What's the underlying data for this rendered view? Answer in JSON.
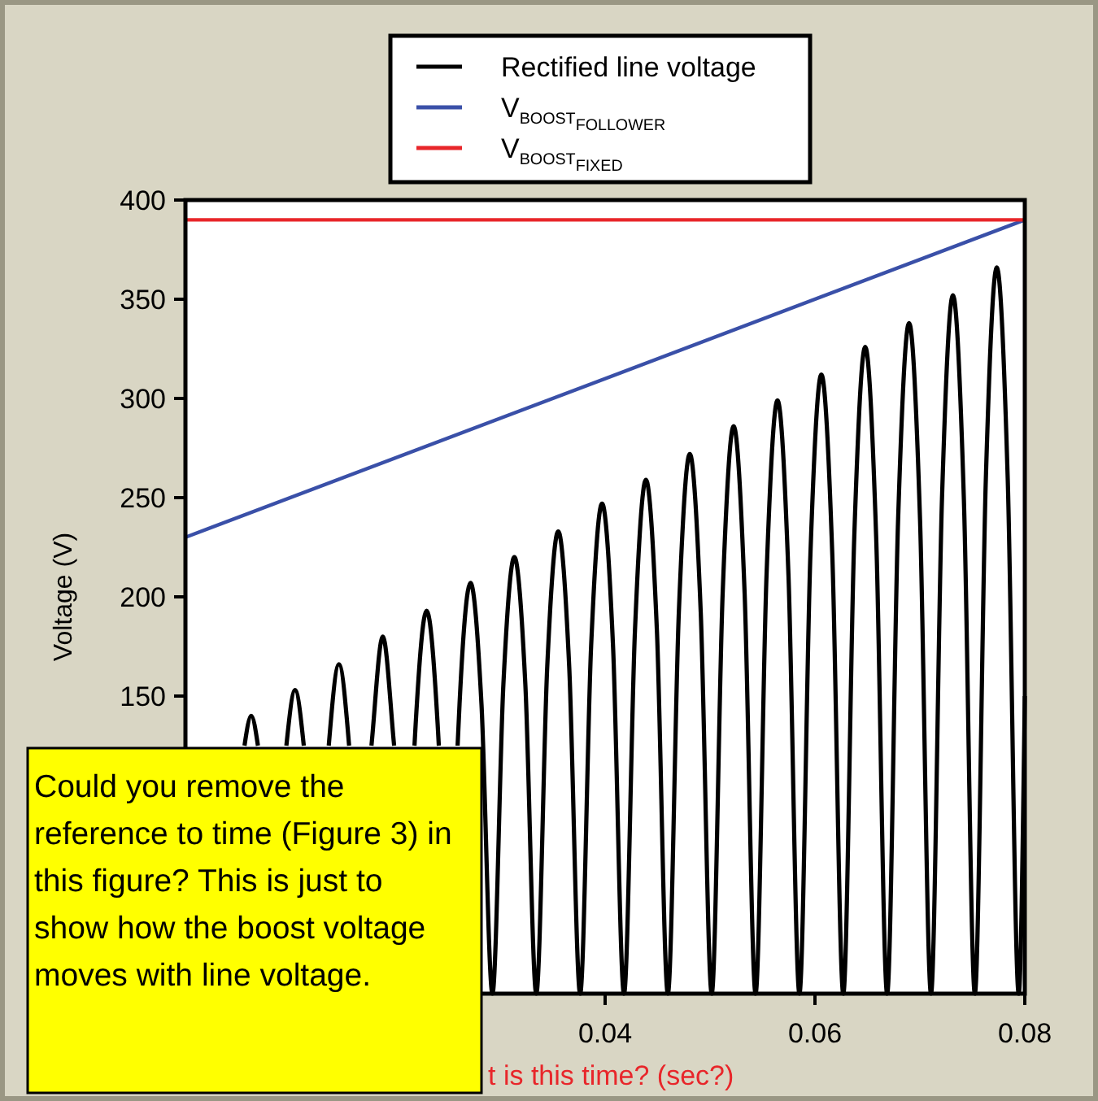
{
  "chart_data": {
    "type": "line",
    "xlabel": "t  is this time? (sec?)",
    "ylabel": "Voltage (V)",
    "xlim": [
      0,
      0.08
    ],
    "ylim": [
      0,
      400
    ],
    "xticks": [
      0.04,
      0.06,
      0.08
    ],
    "yticks": [
      150,
      200,
      250,
      300,
      350,
      400
    ],
    "legend": "top",
    "grid": false,
    "series": [
      {
        "name": "Rectified line voltage",
        "color": "#000000",
        "x": [
          0.00563,
          0.00627,
          0.00691,
          0.007315,
          0.00836,
          0.009405,
          0.00962,
          0.01045,
          0.01128,
          0.011495,
          0.01254,
          0.013585,
          0.01366,
          0.01463,
          0.0156,
          0.015675,
          0.01672,
          0.01773,
          0.017765,
          0.01881,
          0.019855,
          0.01989,
          0.0209,
          0.02183,
          0.021945,
          0.02299,
          0.024035,
          0.02415,
          0.02508,
          0.02594,
          0.026125,
          0.02717,
          0.028215,
          0.02926,
          0.030305,
          0.03135,
          0.032395,
          0.03344,
          0.034485,
          0.03553,
          0.036575,
          0.03762,
          0.038665,
          0.03971,
          0.040755,
          0.0418,
          0.042845,
          0.04389,
          0.044935,
          0.04598,
          0.047025,
          0.04807,
          0.049115,
          0.05016,
          0.051205,
          0.05225,
          0.053295,
          0.05434,
          0.055385,
          0.05643,
          0.057475,
          0.05852,
          0.059565,
          0.06061,
          0.061655,
          0.0627,
          0.063745,
          0.06479,
          0.065835,
          0.06688,
          0.067925,
          0.06897,
          0.070015,
          0.07106,
          0.072105,
          0.07315,
          0.074195,
          0.07524,
          0.076285,
          0.07733,
          0.078375,
          0.07942,
          0.08
        ],
        "values": [
          125,
          140,
          125,
          null,
          null,
          null,
          125,
          153,
          125,
          null,
          null,
          null,
          125,
          166,
          125,
          null,
          null,
          125,
          127,
          180,
          127,
          125,
          null,
          125,
          136,
          193,
          136,
          125,
          null,
          125,
          146,
          207,
          146,
          0,
          156,
          220,
          156,
          0,
          165,
          233,
          165,
          0,
          175,
          247,
          175,
          0,
          183,
          259,
          183,
          0,
          192,
          272,
          192,
          0,
          202,
          286,
          202,
          0,
          211,
          299,
          211,
          0,
          221,
          312,
          221,
          0,
          230,
          326,
          230,
          0,
          239,
          338,
          239,
          0,
          249,
          352,
          249,
          0,
          259,
          366,
          259,
          0,
          150
        ]
      },
      {
        "name": "V$_{BOOST}$$_{FOLLOWER}$",
        "color": "#3a50a8",
        "x": [
          0,
          0.08
        ],
        "values": [
          230,
          390
        ]
      },
      {
        "name": "V$_{BOOST}$$_{FIXED}$",
        "color": "#e8262a",
        "x": [
          0,
          0.08
        ],
        "values": [
          390,
          390
        ]
      }
    ],
    "annotations": [
      "Could you remove the reference to time (Figure 3) in this figure?  This is just to show how the boost voltage moves with line voltage."
    ]
  }
}
